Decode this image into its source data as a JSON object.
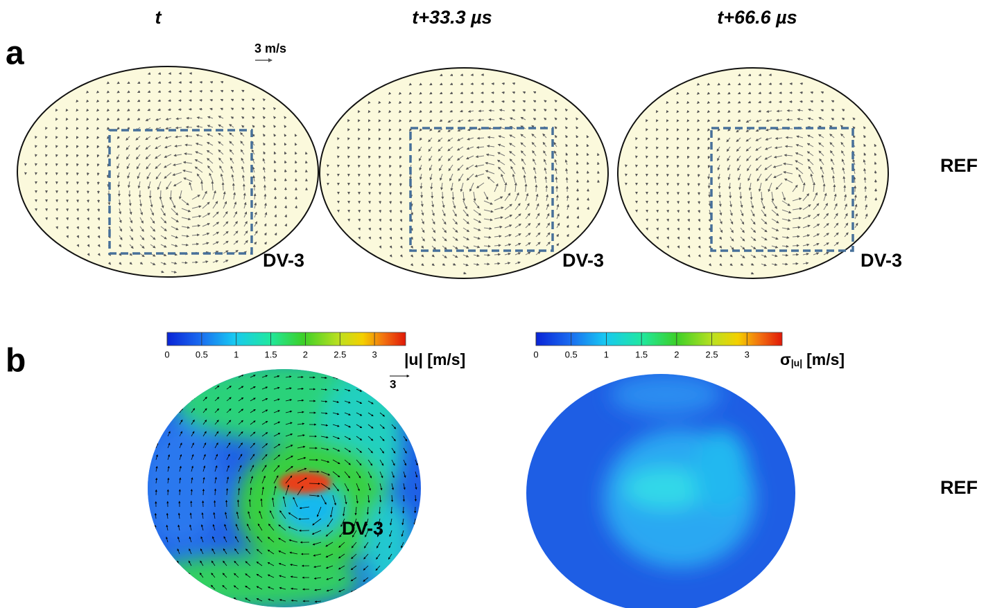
{
  "panel_a": {
    "label": "a",
    "columns": [
      "t",
      "t+33.3 µs",
      "t+66.6 µs"
    ],
    "scale_label": "3 m/s",
    "region_labels": [
      "DV-3",
      "DV-3",
      "DV-3"
    ],
    "row_label": "REF"
  },
  "panel_b": {
    "label": "b",
    "row_label": "REF",
    "maps": [
      {
        "colorbar": {
          "range": [
            0,
            3.45
          ],
          "ticks": [
            0,
            0.5,
            1,
            1.5,
            2,
            2.5,
            3
          ]
        },
        "quantity": "|u| [m/s]",
        "scale_label": "3",
        "region_label": "DV-3"
      },
      {
        "colorbar": {
          "range": [
            0,
            3.5
          ],
          "ticks": [
            0,
            0.5,
            1,
            1.5,
            2,
            2.5,
            3
          ]
        },
        "quantity": {
          "symbol": "σ",
          "subscript": "|u|",
          "unit": "[m/s]"
        }
      }
    ]
  }
}
